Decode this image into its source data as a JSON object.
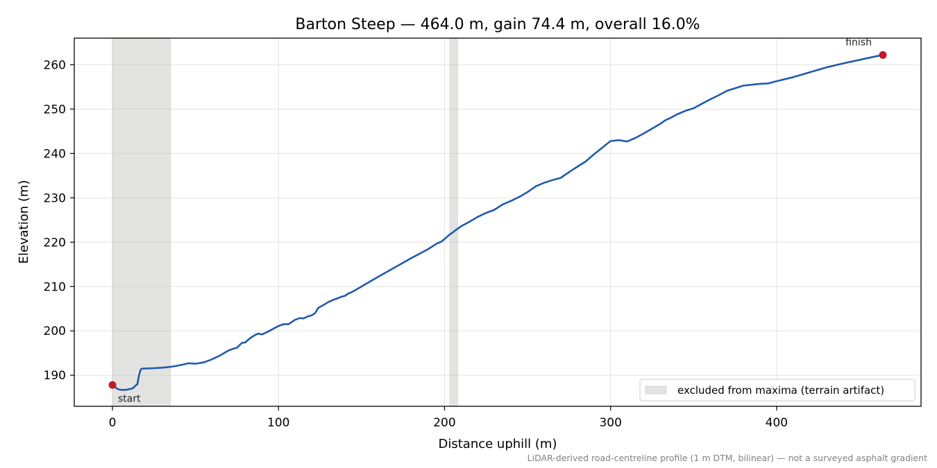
{
  "chart_data": {
    "type": "line",
    "title": "Barton Steep — 464.0 m, gain 74.4 m, overall 16.0%",
    "xlabel": "Distance uphill (m)",
    "ylabel": "Elevation (m)",
    "xlim": [
      -23,
      487
    ],
    "ylim": [
      183,
      266
    ],
    "xticks": [
      0,
      100,
      200,
      300,
      400
    ],
    "yticks": [
      190,
      200,
      210,
      220,
      230,
      240,
      250,
      260
    ],
    "grid": true,
    "legend_position": "bottom-right",
    "line_color": "#1f5aad",
    "marker_color": "#bf1a2a",
    "shade_color": "#e3e3e2",
    "excluded_regions": [
      {
        "x0": 0,
        "x1": 35
      },
      {
        "x0": 203,
        "x1": 208
      }
    ],
    "legend": [
      {
        "label": "excluded from maxima (terrain artifact)",
        "kind": "excluded-region"
      }
    ],
    "series": [
      {
        "x": [
          0,
          3,
          5,
          8,
          12,
          15,
          16,
          17,
          18,
          20,
          25,
          30,
          35,
          40,
          46,
          50,
          55,
          60,
          65,
          70,
          73,
          75,
          78,
          80,
          83,
          86,
          88,
          90,
          93,
          96,
          100,
          103,
          106,
          108,
          110,
          113,
          115,
          118,
          120,
          122,
          124,
          127,
          130,
          133,
          136,
          138,
          140,
          142,
          145,
          150,
          155,
          160,
          170,
          180,
          190,
          195,
          198,
          200,
          203,
          205,
          207,
          210,
          215,
          220,
          225,
          230,
          235,
          240,
          245,
          250,
          255,
          260,
          265,
          270,
          275,
          280,
          285,
          290,
          295,
          300,
          305,
          310,
          315,
          320,
          325,
          330,
          333,
          336,
          340,
          345,
          350,
          355,
          360,
          365,
          370,
          380,
          390,
          395,
          400,
          410,
          420,
          430,
          440,
          450,
          460,
          464
        ],
        "y": [
          187.8,
          186.9,
          186.7,
          186.7,
          187.0,
          188.0,
          190.0,
          191.3,
          191.5,
          191.5,
          191.6,
          191.7,
          191.9,
          192.2,
          192.7,
          192.6,
          192.9,
          193.6,
          194.5,
          195.6,
          196.0,
          196.2,
          197.3,
          197.4,
          198.4,
          199.1,
          199.4,
          199.2,
          199.7,
          200.3,
          201.1,
          201.5,
          201.5,
          202.0,
          202.5,
          202.9,
          202.8,
          203.3,
          203.5,
          204.0,
          205.2,
          205.8,
          206.5,
          207.0,
          207.4,
          207.7,
          207.9,
          208.4,
          208.9,
          210.0,
          211.1,
          212.2,
          214.3,
          216.4,
          218.4,
          219.6,
          220.1,
          220.7,
          221.7,
          222.2,
          222.8,
          223.6,
          224.6,
          225.7,
          226.6,
          227.3,
          228.5,
          229.3,
          230.2,
          231.3,
          232.6,
          233.4,
          234.0,
          234.5,
          235.8,
          237.0,
          238.2,
          239.8,
          241.3,
          242.8,
          243.0,
          242.7,
          243.5,
          244.5,
          245.6,
          246.7,
          247.5,
          248.0,
          248.8,
          249.6,
          250.2,
          251.2,
          252.2,
          253.1,
          254.1,
          255.3,
          255.7,
          255.8,
          256.3,
          257.2,
          258.3,
          259.4,
          260.3,
          261.1,
          261.9,
          262.2
        ]
      }
    ],
    "annotations": [
      {
        "text": "start",
        "x": 0,
        "y": 187.8
      },
      {
        "text": "finish",
        "x": 464,
        "y": 262.2
      }
    ]
  },
  "footnote": "LiDAR-derived road-centreline profile (1 m DTM, bilinear) — not a surveyed asphalt gradient"
}
